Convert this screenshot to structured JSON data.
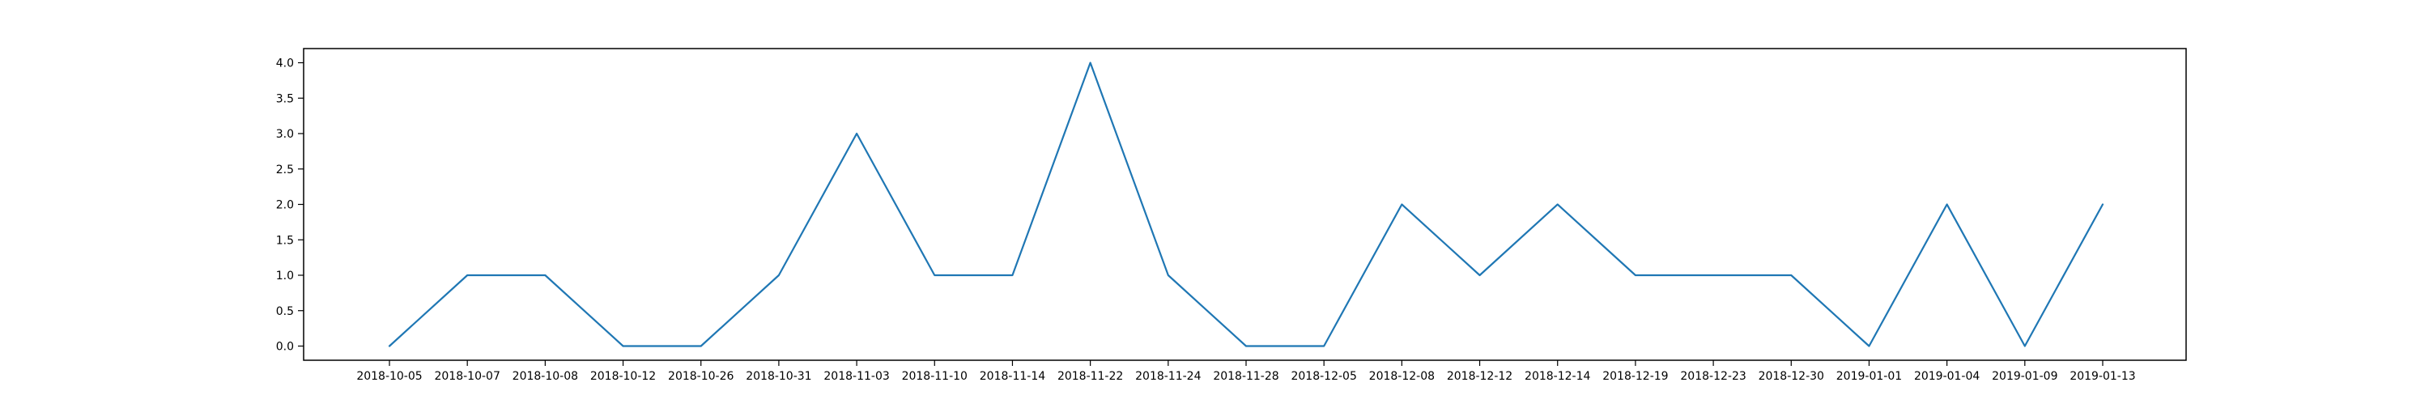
{
  "chart_data": {
    "type": "line",
    "title": "",
    "xlabel": "",
    "ylabel": "",
    "categories": [
      "2018-10-05",
      "2018-10-07",
      "2018-10-08",
      "2018-10-12",
      "2018-10-26",
      "2018-10-31",
      "2018-11-03",
      "2018-11-10",
      "2018-11-14",
      "2018-11-22",
      "2018-11-24",
      "2018-11-28",
      "2018-12-05",
      "2018-12-08",
      "2018-12-12",
      "2018-12-14",
      "2018-12-19",
      "2018-12-23",
      "2018-12-30",
      "2019-01-01",
      "2019-01-04",
      "2019-01-09",
      "2019-01-13"
    ],
    "series": [
      {
        "values": [
          0,
          1,
          1,
          0,
          0,
          1,
          3,
          1,
          1,
          4,
          1,
          0,
          0,
          2,
          1,
          2,
          1,
          1,
          1,
          0,
          2,
          0,
          2
        ],
        "color": "#1f77b4"
      }
    ],
    "yticks": [
      "0.0",
      "0.5",
      "1.0",
      "1.5",
      "2.0",
      "2.5",
      "3.0",
      "3.5",
      "4.0"
    ],
    "ylim": [
      -0.2,
      4.2
    ],
    "grid": false,
    "legend": "none"
  }
}
